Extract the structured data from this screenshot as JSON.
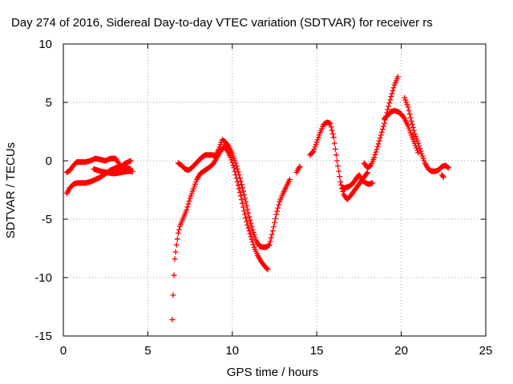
{
  "chart_data": {
    "type": "scatter",
    "title": "Day 274 of 2016, Sidereal Day-to-day VTEC variation (SDTVAR) for receiver rs",
    "xlabel": "GPS time / hours",
    "ylabel": "SDTVAR / TECUs",
    "xlim": [
      0,
      25
    ],
    "ylim": [
      -15,
      10
    ],
    "xticks": [
      0,
      5,
      10,
      15,
      20,
      25
    ],
    "yticks": [
      -15,
      -10,
      -5,
      0,
      5,
      10
    ],
    "grid": true,
    "marker": "+",
    "color": "#ff0000",
    "series": [
      {
        "x": [
          0.2,
          0.4,
          0.6,
          0.8,
          1.0,
          1.3,
          1.6,
          1.9,
          2.2,
          2.5,
          2.8,
          3.1,
          3.4,
          3.7,
          4.0
        ],
        "y": [
          -1.0,
          -0.8,
          -0.4,
          -0.1,
          -0.1,
          -0.1,
          0.0,
          0.2,
          0.1,
          0.0,
          0.2,
          0.2,
          -0.5,
          -0.2,
          0.0
        ]
      },
      {
        "x": [
          0.2,
          0.4,
          0.6,
          0.8,
          1.0,
          1.3,
          1.6,
          1.9,
          2.2,
          2.5,
          2.8,
          3.1,
          3.4,
          3.7,
          4.0
        ],
        "y": [
          -2.8,
          -2.3,
          -2.0,
          -1.9,
          -1.9,
          -1.9,
          -1.8,
          -1.6,
          -1.4,
          -1.1,
          -0.8,
          -0.6,
          -0.6,
          -0.6,
          -0.7
        ]
      },
      {
        "x": [
          1.8,
          2.2,
          2.6,
          3.0,
          3.4,
          3.8,
          4.1
        ],
        "y": [
          -0.7,
          -0.9,
          -1.0,
          -1.1,
          -1.0,
          -0.9,
          -0.9
        ]
      },
      {
        "x": [
          6.45,
          6.5,
          6.55,
          6.6,
          6.7,
          6.8,
          6.9,
          7.1,
          7.3,
          7.5,
          7.7,
          7.9,
          8.1,
          8.3,
          8.5,
          8.7,
          8.9,
          9.1,
          9.3,
          9.5,
          9.7,
          9.9,
          10.1,
          10.3,
          10.5,
          10.7,
          10.9,
          11.1,
          11.3,
          11.5,
          11.7,
          11.9,
          12.1
        ],
        "y": [
          -13.6,
          -11.5,
          -9.8,
          -8.4,
          -7.2,
          -6.2,
          -5.6,
          -4.9,
          -4.2,
          -3.2,
          -2.4,
          -1.6,
          -1.1,
          -0.9,
          -0.7,
          -0.5,
          -0.2,
          0.3,
          0.8,
          1.2,
          0.9,
          0.3,
          -0.6,
          -1.8,
          -3.0,
          -4.3,
          -5.5,
          -6.5,
          -7.4,
          -8.1,
          -8.6,
          -9.0,
          -9.3
        ]
      },
      {
        "x": [
          6.8,
          7.0,
          7.2,
          7.4,
          7.6,
          7.8,
          8.0,
          8.2,
          8.4,
          8.6,
          8.8,
          9.0,
          9.2,
          9.4,
          9.6,
          9.8,
          10.0,
          10.2,
          10.4,
          10.6,
          10.8,
          11.0,
          11.2,
          11.4,
          11.6,
          11.8,
          12.0,
          12.2,
          12.4,
          12.6,
          12.8,
          13.0,
          13.2,
          13.4
        ],
        "y": [
          -0.2,
          -0.4,
          -0.7,
          -0.8,
          -0.6,
          -0.3,
          0.0,
          0.3,
          0.5,
          0.5,
          0.5,
          0.4,
          1.0,
          1.8,
          1.6,
          1.2,
          0.6,
          -0.2,
          -1.2,
          -2.3,
          -3.5,
          -4.8,
          -5.9,
          -6.8,
          -7.3,
          -7.4,
          -7.4,
          -7.2,
          -6.0,
          -4.6,
          -3.5,
          -2.8,
          -2.2,
          -1.6
        ]
      },
      {
        "x": [
          13.8,
          13.9,
          14.0
        ],
        "y": [
          -1.0,
          -0.7,
          -0.5
        ]
      },
      {
        "x": [
          14.6,
          14.8,
          15.0,
          15.2,
          15.4,
          15.6,
          15.8,
          16.0,
          16.2,
          16.4,
          16.6,
          16.8,
          17.0,
          17.2,
          17.4,
          17.6,
          17.8,
          18.0
        ],
        "y": [
          0.5,
          0.8,
          1.6,
          2.4,
          3.1,
          3.3,
          3.2,
          2.0,
          0.0,
          -1.8,
          -2.9,
          -3.3,
          -3.0,
          -2.6,
          -2.2,
          -1.8,
          -1.4,
          -1.0
        ]
      },
      {
        "x": [
          16.5,
          16.7,
          16.9,
          17.1,
          17.3,
          17.5,
          17.7,
          17.9,
          18.1,
          18.3
        ],
        "y": [
          -2.4,
          -2.3,
          -2.2,
          -2.0,
          -1.6,
          -1.2,
          -1.7,
          -1.9,
          -2.0,
          -1.9
        ]
      },
      {
        "x": [
          17.8,
          18.0,
          18.2,
          18.4,
          18.6,
          18.8,
          19.0,
          19.2,
          19.4,
          19.6,
          19.8
        ],
        "y": [
          -0.2,
          -0.6,
          -0.4,
          0.3,
          1.2,
          2.2,
          3.2,
          4.4,
          5.5,
          6.5,
          7.2
        ]
      },
      {
        "x": [
          19.0,
          19.2,
          19.4,
          19.6,
          19.8,
          20.0,
          20.2,
          20.4,
          20.6,
          20.8,
          21.0
        ],
        "y": [
          3.6,
          3.9,
          4.2,
          4.3,
          4.2,
          4.0,
          3.6,
          3.0,
          2.2,
          1.5,
          0.7
        ]
      },
      {
        "x": [
          20.2,
          20.4,
          20.6,
          20.8,
          21.0,
          21.2,
          21.4,
          21.6,
          21.8,
          22.0,
          22.2,
          22.4,
          22.6,
          22.8
        ],
        "y": [
          5.4,
          4.6,
          3.4,
          2.3,
          1.5,
          0.6,
          -0.2,
          -0.7,
          -0.9,
          -0.9,
          -0.8,
          -0.5,
          -0.4,
          -0.6
        ]
      },
      {
        "x": [
          22.4,
          22.5
        ],
        "y": [
          -1.2,
          -1.4
        ]
      }
    ]
  }
}
